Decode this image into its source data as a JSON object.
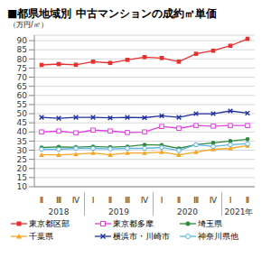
{
  "chart_data": {
    "type": "line",
    "title": "■都県地域別 中古マンションの成約㎡単価",
    "y_label": "（万円/㎡）",
    "categories": [
      "Ⅱ",
      "Ⅲ",
      "Ⅳ",
      "Ⅰ",
      "Ⅱ",
      "Ⅲ",
      "Ⅳ",
      "Ⅰ",
      "Ⅱ",
      "Ⅲ",
      "Ⅳ",
      "Ⅰ",
      "Ⅱ"
    ],
    "x_groups": [
      {
        "label": "2018",
        "from": 0,
        "to": 2
      },
      {
        "label": "2019",
        "from": 3,
        "to": 6
      },
      {
        "label": "2020",
        "from": 7,
        "to": 10
      },
      {
        "label": "2021年",
        "from": 11,
        "to": 12
      }
    ],
    "ylim": [
      10,
      93
    ],
    "yticks": [
      10,
      15,
      20,
      25,
      30,
      35,
      40,
      45,
      50,
      55,
      60,
      65,
      70,
      75,
      80,
      85,
      90
    ],
    "grid": true,
    "legend": "bottom",
    "series": [
      {
        "name": "東京都区部",
        "color": "#e8312f",
        "marker": "square",
        "values": [
          76.7,
          77.2,
          76.8,
          78.5,
          77.8,
          79.5,
          81.0,
          80.5,
          78.5,
          82.8,
          84.5,
          87.2,
          91.0
        ]
      },
      {
        "name": "東京都多摩",
        "color": "#e040e0",
        "marker": "square_open",
        "values": [
          40.0,
          40.5,
          39.5,
          41.0,
          40.5,
          39.7,
          40.0,
          43.0,
          42.0,
          43.5,
          43.2,
          43.5,
          43.5
        ]
      },
      {
        "name": "埼玉県",
        "color": "#2e8b3e",
        "marker": "circle",
        "values": [
          31.5,
          31.8,
          31.7,
          32.0,
          31.7,
          32.0,
          33.0,
          32.8,
          31.0,
          33.0,
          34.0,
          35.0,
          36.0
        ]
      },
      {
        "name": "千葉県",
        "color": "#f5a623",
        "marker": "triangle",
        "values": [
          27.5,
          27.5,
          27.8,
          28.5,
          27.5,
          28.5,
          28.5,
          29.0,
          27.5,
          29.0,
          30.5,
          31.0,
          32.5
        ]
      },
      {
        "name": "横浜市・川崎市",
        "color": "#1f2f9e",
        "marker": "cross",
        "values": [
          48.0,
          47.5,
          48.0,
          48.0,
          47.7,
          48.0,
          47.8,
          48.8,
          48.0,
          50.0,
          50.0,
          51.5,
          50.3
        ]
      },
      {
        "name": "神奈川県他",
        "color": "#5ab4e6",
        "marker": "circle_open",
        "values": [
          30.5,
          30.5,
          31.0,
          31.0,
          30.7,
          31.0,
          31.0,
          31.5,
          29.8,
          33.0,
          32.0,
          33.0,
          33.5
        ]
      }
    ]
  }
}
